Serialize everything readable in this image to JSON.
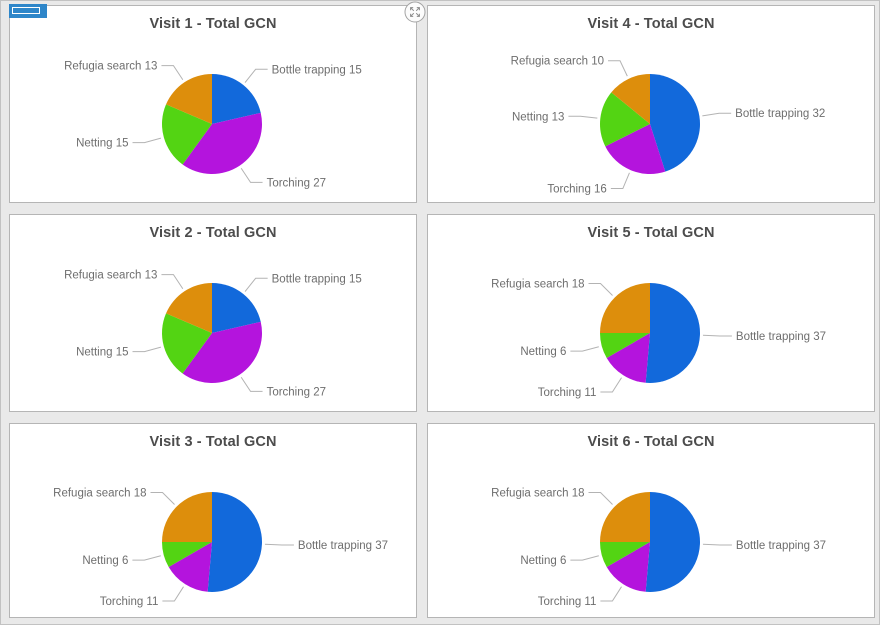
{
  "window": {
    "background": "#e9e9e9",
    "frame_border": "#c2c2c2"
  },
  "card": {
    "background": "#ffffff",
    "border": "#b5b5b5"
  },
  "controls": {
    "drag_handle": {
      "icon": "drag-handle-icon",
      "color": "#2e86c9"
    },
    "expand_button": {
      "icon": "expand-arrows-icon",
      "circle_border": "#a3a3a3",
      "arrow_color": "#8a8a8a",
      "fill": "#fcfcfc"
    }
  },
  "style": {
    "title_color": "#4c4c4c",
    "label_color": "#6e6e6e",
    "leader_line_color": "#b3b3b3",
    "palette": {
      "Bottle trapping": "#1269db",
      "Torching": "#b414dd",
      "Netting": "#53d413",
      "Refugia search": "#dd8e0c"
    }
  },
  "chart_data": [
    {
      "type": "pie",
      "title": "Visit 1 - Total GCN",
      "categories": [
        "Bottle trapping",
        "Torching",
        "Netting",
        "Refugia search"
      ],
      "values": [
        15,
        27,
        15,
        13
      ],
      "slice_labels": [
        "Bottle trapping 15",
        "Torching 27",
        "Netting 15",
        "Refugia search 13"
      ],
      "start_angle_deg": 0,
      "direction": "clockwise",
      "legend": "none"
    },
    {
      "type": "pie",
      "title": "Visit 4 - Total GCN",
      "categories": [
        "Bottle trapping",
        "Torching",
        "Netting",
        "Refugia search"
      ],
      "values": [
        32,
        16,
        13,
        10
      ],
      "slice_labels": [
        "Bottle trapping 32",
        "Torching 16",
        "Netting 13",
        "Refugia search 10"
      ],
      "start_angle_deg": 0,
      "direction": "clockwise",
      "legend": "none"
    },
    {
      "type": "pie",
      "title": "Visit 2 - Total GCN",
      "categories": [
        "Bottle trapping",
        "Torching",
        "Netting",
        "Refugia search"
      ],
      "values": [
        15,
        27,
        15,
        13
      ],
      "slice_labels": [
        "Bottle trapping 15",
        "Torching 27",
        "Netting 15",
        "Refugia search 13"
      ],
      "start_angle_deg": 0,
      "direction": "clockwise",
      "legend": "none"
    },
    {
      "type": "pie",
      "title": "Visit 5 - Total GCN",
      "categories": [
        "Bottle trapping",
        "Torching",
        "Netting",
        "Refugia search"
      ],
      "values": [
        37,
        11,
        6,
        18
      ],
      "slice_labels": [
        "Bottle trapping 37",
        "Torching 11",
        "Netting 6",
        "Refugia search 18"
      ],
      "start_angle_deg": 0,
      "direction": "clockwise",
      "legend": "none"
    },
    {
      "type": "pie",
      "title": "Visit 3 - Total GCN",
      "categories": [
        "Bottle trapping",
        "Torching",
        "Netting",
        "Refugia search"
      ],
      "values": [
        37,
        11,
        6,
        18
      ],
      "slice_labels": [
        "Bottle trapping 37",
        "Torching 11",
        "Netting 6",
        "Refugia search 18"
      ],
      "start_angle_deg": 0,
      "direction": "clockwise",
      "legend": "none"
    },
    {
      "type": "pie",
      "title": "Visit 6 - Total GCN",
      "categories": [
        "Bottle trapping",
        "Torching",
        "Netting",
        "Refugia search"
      ],
      "values": [
        37,
        11,
        6,
        18
      ],
      "slice_labels": [
        "Bottle trapping 37",
        "Torching 11",
        "Netting 6",
        "Refugia search 18"
      ],
      "start_angle_deg": 0,
      "direction": "clockwise",
      "legend": "none"
    }
  ]
}
